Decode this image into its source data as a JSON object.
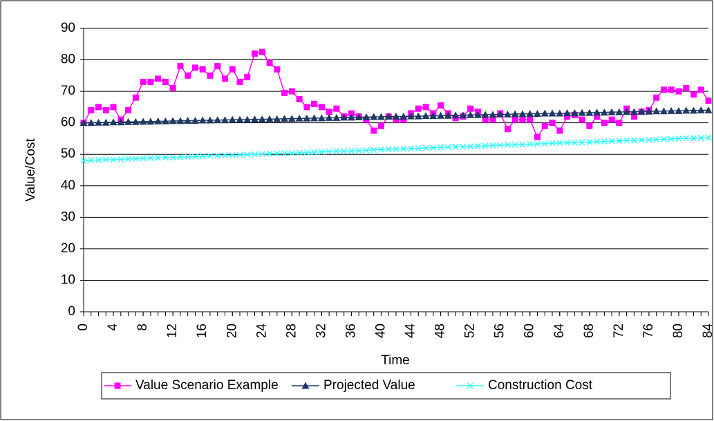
{
  "chart_data": {
    "type": "line",
    "x_label": "Time",
    "y_label": "Value/Cost",
    "x": [
      0,
      1,
      2,
      3,
      4,
      5,
      6,
      7,
      8,
      9,
      10,
      11,
      12,
      13,
      14,
      15,
      16,
      17,
      18,
      19,
      20,
      21,
      22,
      23,
      24,
      25,
      26,
      27,
      28,
      29,
      30,
      31,
      32,
      33,
      34,
      35,
      36,
      37,
      38,
      39,
      40,
      41,
      42,
      43,
      44,
      45,
      46,
      47,
      48,
      49,
      50,
      51,
      52,
      53,
      54,
      55,
      56,
      57,
      58,
      59,
      60,
      61,
      62,
      63,
      64,
      65,
      66,
      67,
      68,
      69,
      70,
      71,
      72,
      73,
      74,
      75,
      76,
      77,
      78,
      79,
      80,
      81,
      82,
      83,
      84
    ],
    "xlim": [
      0,
      84
    ],
    "xticks": [
      0,
      4,
      8,
      12,
      16,
      20,
      24,
      28,
      32,
      36,
      40,
      44,
      48,
      52,
      56,
      60,
      64,
      68,
      72,
      76,
      80,
      84
    ],
    "ylim": [
      0,
      90
    ],
    "yticks": [
      0,
      10,
      20,
      30,
      40,
      50,
      60,
      70,
      80,
      90
    ],
    "grid": true,
    "legend": "bottom",
    "series": [
      {
        "name": "Value Scenario Example",
        "color": "#ff00ff",
        "marker": "square",
        "values": [
          60,
          64,
          65,
          64,
          65,
          61,
          64,
          68,
          73,
          73,
          74,
          73,
          71,
          78,
          75,
          77.5,
          77,
          75,
          78,
          74,
          77,
          73,
          74.5,
          82,
          82.5,
          79,
          77,
          69.5,
          70,
          67.5,
          65,
          66,
          65,
          63.5,
          64.5,
          62,
          63,
          62,
          61,
          57.5,
          59,
          62,
          61,
          61,
          63,
          64.5,
          65,
          63,
          65.5,
          63,
          61.5,
          62,
          64.5,
          63.5,
          61,
          61,
          63,
          58,
          61,
          61,
          61,
          55.5,
          59,
          60,
          57.5,
          62,
          62.5,
          61,
          59,
          62,
          60,
          61,
          60,
          64.5,
          62,
          63.5,
          64,
          68,
          70.5,
          70.5,
          70,
          71,
          69,
          70.5,
          67
        ]
      },
      {
        "name": "Projected Value",
        "color": "#1f3864",
        "marker": "triangle",
        "values": [
          60.0,
          60.0,
          60.1,
          60.1,
          60.2,
          60.2,
          60.3,
          60.3,
          60.4,
          60.4,
          60.5,
          60.5,
          60.6,
          60.6,
          60.7,
          60.7,
          60.8,
          60.8,
          60.9,
          60.9,
          61.0,
          61.0,
          61.0,
          61.1,
          61.1,
          61.2,
          61.2,
          61.3,
          61.3,
          61.4,
          61.4,
          61.5,
          61.5,
          61.6,
          61.6,
          61.7,
          61.7,
          61.8,
          61.8,
          61.9,
          61.9,
          62.0,
          62.0,
          62.0,
          62.1,
          62.1,
          62.2,
          62.2,
          62.3,
          62.3,
          62.4,
          62.4,
          62.5,
          62.5,
          62.6,
          62.6,
          62.7,
          62.7,
          62.8,
          62.8,
          62.9,
          62.9,
          63.0,
          63.0,
          63.0,
          63.1,
          63.1,
          63.2,
          63.2,
          63.3,
          63.3,
          63.4,
          63.4,
          63.5,
          63.5,
          63.6,
          63.6,
          63.7,
          63.7,
          63.8,
          63.8,
          63.9,
          63.9,
          64.0,
          64.0
        ]
      },
      {
        "name": "Construction Cost",
        "color": "#33ffff",
        "marker": "x",
        "values": [
          48.0,
          48.1,
          48.2,
          48.3,
          48.3,
          48.4,
          48.5,
          48.6,
          48.7,
          48.8,
          48.9,
          49.0,
          49.0,
          49.1,
          49.2,
          49.3,
          49.4,
          49.5,
          49.6,
          49.7,
          49.7,
          49.8,
          49.9,
          50.0,
          50.1,
          50.2,
          50.3,
          50.3,
          50.4,
          50.5,
          50.6,
          50.7,
          50.8,
          50.9,
          51.0,
          51.0,
          51.1,
          51.2,
          51.3,
          51.4,
          51.5,
          51.6,
          51.7,
          51.7,
          51.8,
          51.9,
          52.0,
          52.1,
          52.2,
          52.3,
          52.4,
          52.4,
          52.5,
          52.6,
          52.7,
          52.8,
          52.9,
          53.0,
          53.0,
          53.1,
          53.2,
          53.3,
          53.4,
          53.5,
          53.6,
          53.7,
          53.7,
          53.8,
          53.9,
          54.0,
          54.1,
          54.2,
          54.3,
          54.4,
          54.4,
          54.5,
          54.6,
          54.7,
          54.8,
          54.9,
          55.0,
          55.1,
          55.1,
          55.2,
          55.3
        ]
      }
    ]
  }
}
